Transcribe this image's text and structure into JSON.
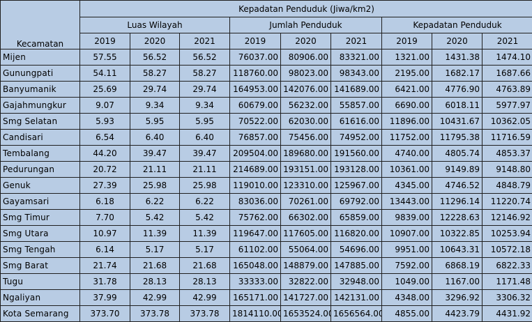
{
  "table": {
    "title": "Kepadatan Penduduk (Jiwa/km2)",
    "kecamatan_header": "Kecamatan",
    "groups": [
      "Luas Wilayah",
      "Jumlah Penduduk",
      "Kepadatan Penduduk"
    ],
    "years": [
      "2019",
      "2020",
      "2021"
    ],
    "rows": [
      {
        "name": "Mijen",
        "v": [
          "57.55",
          "56.52",
          "56.52",
          "76037.00",
          "80906.00",
          "83321.00",
          "1321.00",
          "1431.38",
          "1474.10"
        ]
      },
      {
        "name": "Gunungpati",
        "v": [
          "54.11",
          "58.27",
          "58.27",
          "118760.00",
          "98023.00",
          "98343.00",
          "2195.00",
          "1682.17",
          "1687.66"
        ]
      },
      {
        "name": "Banyumanik",
        "v": [
          "25.69",
          "29.74",
          "29.74",
          "164953.00",
          "142076.00",
          "141689.00",
          "6421.00",
          "4776.90",
          "4763.89"
        ]
      },
      {
        "name": "Gajahmungkur",
        "v": [
          "9.07",
          "9.34",
          "9.34",
          "60679.00",
          "56232.00",
          "55857.00",
          "6690.00",
          "6018.11",
          "5977.97"
        ]
      },
      {
        "name": "Smg Selatan",
        "v": [
          "5.93",
          "5.95",
          "5.95",
          "70522.00",
          "62030.00",
          "61616.00",
          "11896.00",
          "10431.67",
          "10362.05"
        ]
      },
      {
        "name": "Candisari",
        "v": [
          "6.54",
          "6.40",
          "6.40",
          "76857.00",
          "75456.00",
          "74952.00",
          "11752.00",
          "11795.38",
          "11716.59"
        ]
      },
      {
        "name": "Tembalang",
        "v": [
          "44.20",
          "39.47",
          "39.47",
          "209504.00",
          "189680.00",
          "191560.00",
          "4740.00",
          "4805.74",
          "4853.37"
        ]
      },
      {
        "name": "Pedurungan",
        "v": [
          "20.72",
          "21.11",
          "21.11",
          "214689.00",
          "193151.00",
          "193128.00",
          "10361.00",
          "9149.89",
          "9148.80"
        ]
      },
      {
        "name": "Genuk",
        "v": [
          "27.39",
          "25.98",
          "25.98",
          "119010.00",
          "123310.00",
          "125967.00",
          "4345.00",
          "4746.52",
          "4848.79"
        ]
      },
      {
        "name": "Gayamsari",
        "v": [
          "6.18",
          "6.22",
          "6.22",
          "83036.00",
          "70261.00",
          "69792.00",
          "13443.00",
          "11296.14",
          "11220.74"
        ]
      },
      {
        "name": "Smg Timur",
        "v": [
          "7.70",
          "5.42",
          "5.42",
          "75762.00",
          "66302.00",
          "65859.00",
          "9839.00",
          "12228.63",
          "12146.92"
        ]
      },
      {
        "name": "Smg Utara",
        "v": [
          "10.97",
          "11.39",
          "11.39",
          "119647.00",
          "117605.00",
          "116820.00",
          "10907.00",
          "10322.85",
          "10253.94"
        ]
      },
      {
        "name": "Smg Tengah",
        "v": [
          "6.14",
          "5.17",
          "5.17",
          "61102.00",
          "55064.00",
          "54696.00",
          "9951.00",
          "10643.31",
          "10572.18"
        ]
      },
      {
        "name": "Smg Barat",
        "v": [
          "21.74",
          "21.68",
          "21.68",
          "165048.00",
          "148879.00",
          "147885.00",
          "7592.00",
          "6868.19",
          "6822.33"
        ]
      },
      {
        "name": "Tugu",
        "v": [
          "31.78",
          "28.13",
          "28.13",
          "33333.00",
          "32822.00",
          "32948.00",
          "1049.00",
          "1167.00",
          "1171.48"
        ]
      },
      {
        "name": "Ngaliyan",
        "v": [
          "37.99",
          "42.99",
          "42.99",
          "165171.00",
          "141727.00",
          "142131.00",
          "4348.00",
          "3296.92",
          "3306.32"
        ]
      },
      {
        "name": "Kota Semarang",
        "v": [
          "373.70",
          "373.78",
          "373.78",
          "1814110.00",
          "1653524.00",
          "1656564.00",
          "4855.00",
          "4423.79",
          "4431.92"
        ]
      }
    ]
  },
  "colors": {
    "cell_background": "#b8cce4",
    "border": "#1f1f1f"
  }
}
